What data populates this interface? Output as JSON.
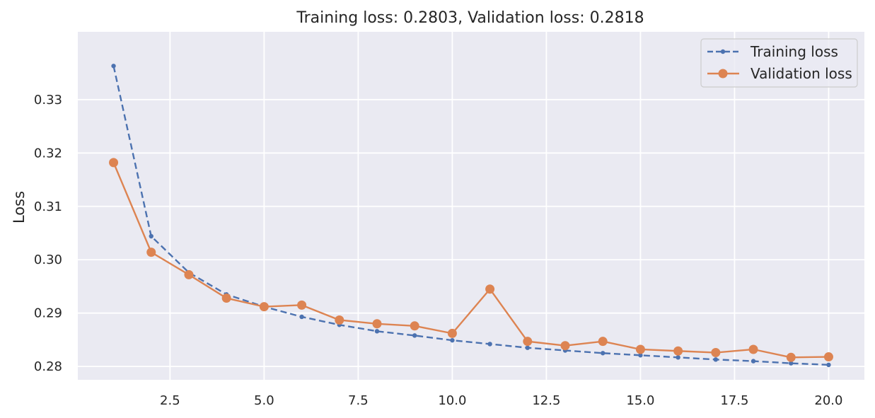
{
  "chart_data": {
    "type": "line",
    "title": "Training loss: 0.2803, Validation loss: 0.2818",
    "xlabel": "",
    "ylabel": "Loss",
    "x": [
      1,
      2,
      3,
      4,
      5,
      6,
      7,
      8,
      9,
      10,
      11,
      12,
      13,
      14,
      15,
      16,
      17,
      18,
      19,
      20
    ],
    "xlim": [
      0.05,
      20.95
    ],
    "ylim": [
      0.2775,
      0.3427
    ],
    "xticks": [
      2.5,
      5.0,
      7.5,
      10.0,
      12.5,
      15.0,
      17.5,
      20.0
    ],
    "xtick_labels": [
      "2.5",
      "5.0",
      "7.5",
      "10.0",
      "12.5",
      "15.0",
      "17.5",
      "20.0"
    ],
    "yticks": [
      0.28,
      0.29,
      0.3,
      0.31,
      0.32,
      0.33
    ],
    "ytick_labels": [
      "0.28",
      "0.29",
      "0.30",
      "0.31",
      "0.32",
      "0.33"
    ],
    "grid": true,
    "legend_position": "top-right",
    "series": [
      {
        "name": "Training loss",
        "color": "#4c72b0",
        "style": "dashed",
        "marker": "small-dot",
        "values": [
          0.3363,
          0.3044,
          0.2976,
          0.2935,
          0.2912,
          0.2893,
          0.2878,
          0.2866,
          0.2858,
          0.2849,
          0.2842,
          0.2835,
          0.283,
          0.2825,
          0.2821,
          0.2817,
          0.2813,
          0.281,
          0.2806,
          0.2803
        ]
      },
      {
        "name": "Validation loss",
        "color": "#dd8452",
        "style": "solid",
        "marker": "circle",
        "values": [
          0.3182,
          0.3014,
          0.2972,
          0.2928,
          0.2912,
          0.2915,
          0.2887,
          0.288,
          0.2876,
          0.2862,
          0.2945,
          0.2847,
          0.2839,
          0.2847,
          0.2832,
          0.2829,
          0.2826,
          0.2832,
          0.2817,
          0.2818
        ]
      }
    ]
  }
}
